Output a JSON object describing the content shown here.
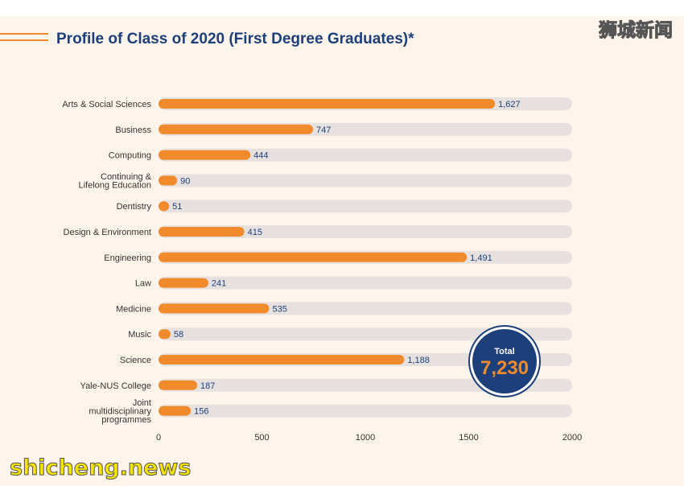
{
  "page": {
    "title": "Profile of Class of 2020 (First Degree Graduates)*"
  },
  "colors": {
    "accent": "#f08a2a",
    "track": "#e6e1de",
    "title": "#1d3f7a",
    "badge": "#1d3f7a"
  },
  "total_badge": {
    "label": "Total",
    "value": "7,230"
  },
  "watermarks": {
    "top": "狮城新闻",
    "bottom": "shicheng.news"
  },
  "chart_data": {
    "type": "bar",
    "orientation": "horizontal",
    "categories": [
      [
        "Arts & Social Sciences"
      ],
      [
        "Business"
      ],
      [
        "Computing"
      ],
      [
        "Continuing &",
        "Lifelong Education"
      ],
      [
        "Dentistry"
      ],
      [
        "Design & Environment"
      ],
      [
        "Engineering"
      ],
      [
        "Law"
      ],
      [
        "Medicine"
      ],
      [
        "Music"
      ],
      [
        "Science"
      ],
      [
        "Yale-NUS College"
      ],
      [
        "Joint",
        "multidisciplinary",
        "programmes"
      ]
    ],
    "values": [
      1627,
      747,
      444,
      90,
      51,
      415,
      1491,
      241,
      535,
      58,
      1188,
      187,
      156
    ],
    "value_labels": [
      "1,627",
      "747",
      "444",
      "90",
      "51",
      "415",
      "1,491",
      "241",
      "535",
      "58",
      "1,188",
      "187",
      "156"
    ],
    "xlim": [
      0,
      2000
    ],
    "xticks": [
      0,
      500,
      1000,
      1500,
      2000
    ],
    "xtick_labels": [
      "0",
      "500",
      "1000",
      "1500",
      "2000"
    ],
    "grid": false
  }
}
